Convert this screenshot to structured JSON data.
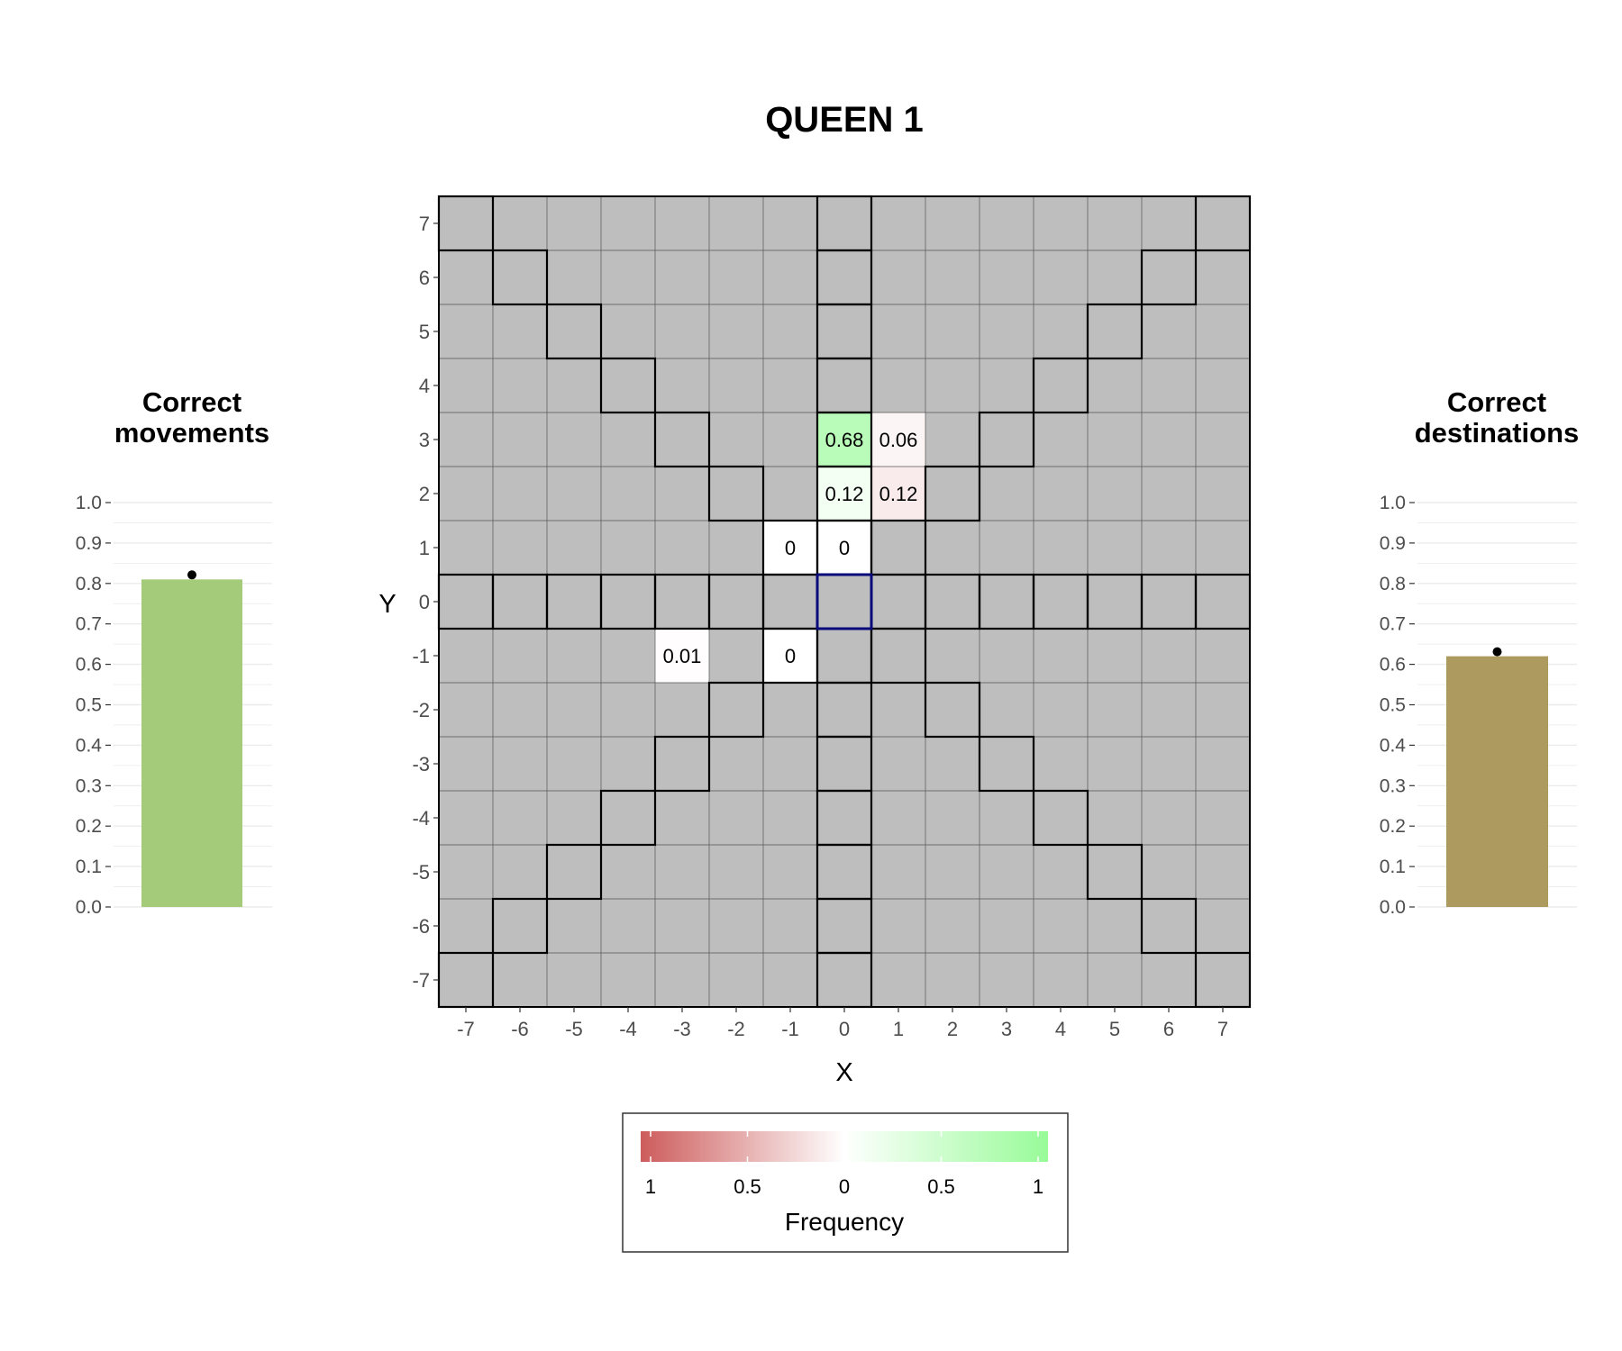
{
  "chart_data": {
    "title": "QUEEN 1",
    "main_heatmap": {
      "type": "heatmap",
      "xlabel": "X",
      "ylabel": "Y",
      "xlim": [
        -7,
        7
      ],
      "ylim": [
        -7,
        7
      ],
      "x_ticks": [
        "-7",
        "-6",
        "-5",
        "-4",
        "-3",
        "-2",
        "-1",
        "0",
        "1",
        "2",
        "3",
        "4",
        "5",
        "6",
        "7"
      ],
      "y_ticks": [
        "7",
        "6",
        "5",
        "4",
        "3",
        "2",
        "1",
        "0",
        "-1",
        "-2",
        "-3",
        "-4",
        "-5",
        "-6",
        "-7"
      ],
      "background_cell_color": "#bebebe",
      "origin": {
        "x": 0,
        "y": 0,
        "outline_color": "#0a0a7a"
      },
      "valid_moves_outlined": "queen lines: row 0, column 0 and both diagonals",
      "cells": [
        {
          "x": 0,
          "y": 3,
          "value": 0.68,
          "label": "0.68",
          "correct": true
        },
        {
          "x": 1,
          "y": 3,
          "value": 0.06,
          "label": "0.06",
          "correct": false
        },
        {
          "x": 0,
          "y": 2,
          "value": 0.12,
          "label": "0.12",
          "correct": true
        },
        {
          "x": 1,
          "y": 2,
          "value": 0.12,
          "label": "0.12",
          "correct": false
        },
        {
          "x": -1,
          "y": 1,
          "value": 0.003,
          "label": "0",
          "correct": true
        },
        {
          "x": 0,
          "y": 1,
          "value": 0.003,
          "label": "0",
          "correct": true
        },
        {
          "x": -3,
          "y": -1,
          "value": 0.01,
          "label": "0.01",
          "correct": false
        },
        {
          "x": -1,
          "y": -1,
          "value": 0.003,
          "label": "0",
          "correct": true
        }
      ]
    },
    "left_bar": {
      "type": "bar",
      "title_lines": [
        "Correct",
        "movements"
      ],
      "value": 0.81,
      "ylim": [
        0,
        1
      ],
      "y_ticks": [
        "0.0",
        "0.1",
        "0.2",
        "0.3",
        "0.4",
        "0.5",
        "0.6",
        "0.7",
        "0.8",
        "0.9",
        "1.0"
      ],
      "color": "#a4cb7a"
    },
    "right_bar": {
      "type": "bar",
      "title_lines": [
        "Correct",
        "destinations"
      ],
      "value": 0.62,
      "ylim": [
        0,
        1
      ],
      "y_ticks": [
        "0.0",
        "0.1",
        "0.2",
        "0.3",
        "0.4",
        "0.5",
        "0.6",
        "0.7",
        "0.8",
        "0.9",
        "1.0"
      ],
      "color": "#ad9a5e"
    },
    "legend": {
      "title": "Frequency",
      "labels": [
        "1",
        "0.5",
        "0",
        "0.5",
        "1"
      ],
      "low_color": "#cd5c5c",
      "mid_color": "#ffffff",
      "high_color": "#98fb98",
      "placement": "bottom"
    }
  }
}
